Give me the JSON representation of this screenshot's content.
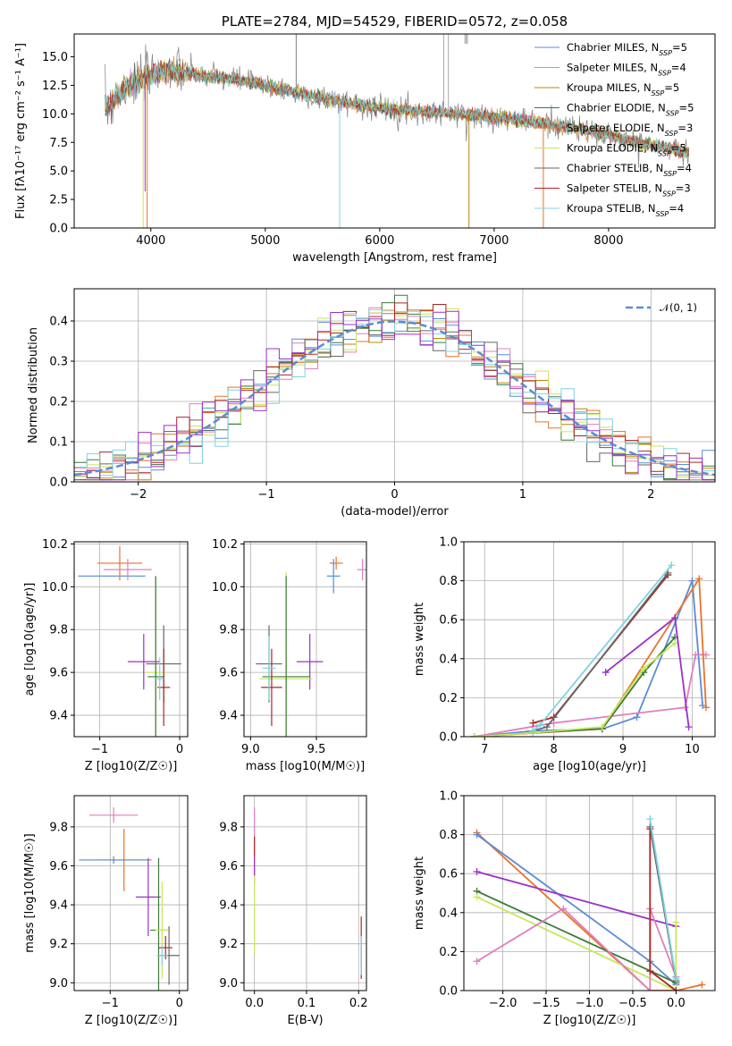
{
  "colors": {
    "Chabrier MILES": "#5b8bd6",
    "Salpeter MILES": "#e07fbf",
    "Kroupa MILES": "#b8860b",
    "Chabrier ELODIE": "#3a7a3a",
    "Salpeter ELODIE": "#e8732a",
    "Kroupa ELODIE": "#c6e85a",
    "Chabrier STELIB": "#666666",
    "Salpeter STELIB": "#b22222",
    "Kroupa STELIB": "#7fd3e0",
    "purple": "#9b30c8",
    "blue2": "#4f8ed6"
  },
  "chart_data": [
    {
      "id": "spectrum",
      "type": "line",
      "title": "PLATE=2784, MJD=54529, FIBERID=0572, z=0.058",
      "xlabel": "wavelength [Angstrom, rest frame]",
      "ylabel": "Flux [fλ10⁻¹⁷ erg cm⁻² s⁻¹ A⁻¹]",
      "xlim": [
        3330,
        8930
      ],
      "ylim": [
        0,
        17
      ],
      "xticks": [
        4000,
        5000,
        6000,
        7000,
        8000
      ],
      "yticks": [
        0.0,
        2.5,
        5.0,
        7.5,
        10.0,
        12.5,
        15.0
      ],
      "continuum": {
        "x": [
          3600,
          3700,
          3800,
          3950,
          4100,
          4300,
          4500,
          4800,
          5200,
          5600,
          6000,
          6400,
          6800,
          7200,
          7600,
          8000,
          8400,
          8700
        ],
        "y": [
          10.5,
          11.5,
          12.5,
          13.2,
          13.8,
          13.6,
          13.3,
          12.9,
          12.0,
          11.2,
          10.5,
          10.2,
          9.9,
          9.5,
          8.9,
          8.1,
          7.2,
          6.6
        ]
      },
      "legend": [
        "Chabrier MILES, N_SSP=5",
        "Salpeter MILES, N_SSP=4",
        "Kroupa MILES, N_SSP=5",
        "Chabrier ELODIE, N_SSP=5",
        "Salpeter ELODIE, N_SSP=3",
        "Kroupa ELODIE, N_SSP=5",
        "Chabrier STELIB, N_SSP=4",
        "Salpeter STELIB, N_SSP=3",
        "Kroupa STELIB, N_SSP=4"
      ],
      "legend_position": "top-right",
      "grid": false
    },
    {
      "id": "residuals",
      "type": "histogram",
      "xlabel": "(data-model)/error",
      "ylabel": "Normed distribution",
      "xlim": [
        -2.5,
        2.5
      ],
      "ylim": [
        0,
        0.48
      ],
      "xticks": [
        -2,
        -1,
        0,
        1,
        2
      ],
      "yticks": [
        0.0,
        0.1,
        0.2,
        0.3,
        0.4
      ],
      "legend": [
        "𝒩(0, 1)"
      ],
      "legend_position": "top-right",
      "reference_curve": "normal(0,1)",
      "grid": true
    },
    {
      "id": "age-vs-Z",
      "type": "errorbar",
      "xlabel": "Z [log10(Z/Z☉)]",
      "ylabel": "age  [log10(age/yr)]",
      "xlim": [
        -1.32,
        0.1
      ],
      "ylim": [
        9.3,
        10.21
      ],
      "xticks": [
        -1,
        0
      ],
      "yticks": [
        9.4,
        9.6,
        9.8,
        10.0,
        10.2
      ],
      "points": [
        {
          "color": "blue2",
          "x": -0.85,
          "xerr": 0.42,
          "y": 10.05,
          "yerr": 0.0
        },
        {
          "color": "Salpeter ELODIE",
          "x": -0.75,
          "xerr": 0.28,
          "y": 10.11,
          "yerr": 0.08
        },
        {
          "color": "Salpeter MILES",
          "x": -0.65,
          "xerr": 0.3,
          "y": 10.08,
          "yerr": 0.05
        },
        {
          "color": "purple",
          "x": -0.45,
          "xerr": 0.2,
          "y": 9.65,
          "yerr": 0.13
        },
        {
          "color": "Kroupa ELODIE",
          "x": -0.3,
          "xerr": 0.13,
          "y": 9.6,
          "yerr": 0.45
        },
        {
          "color": "Chabrier ELODIE",
          "x": -0.3,
          "xerr": 0.1,
          "y": 9.58,
          "yerr": 0.47
        },
        {
          "color": "Chabrier STELIB",
          "x": -0.2,
          "xerr": 0.22,
          "y": 9.64,
          "yerr": 0.18
        },
        {
          "color": "Salpeter STELIB",
          "x": -0.2,
          "xerr": 0.08,
          "y": 9.53,
          "yerr": 0.18
        },
        {
          "color": "Kroupa STELIB",
          "x": -0.25,
          "xerr": 0.05,
          "y": 9.57,
          "yerr": 0.1
        }
      ],
      "grid": true
    },
    {
      "id": "age-vs-mass",
      "type": "errorbar",
      "xlabel": "mass [log10(M/M☉)]",
      "ylabel": "",
      "xlim": [
        8.95,
        9.88
      ],
      "ylim": [
        9.3,
        10.21
      ],
      "xticks": [
        9.0,
        9.5
      ],
      "yticks": [
        9.4,
        9.6,
        9.8,
        10.0,
        10.2
      ],
      "points": [
        {
          "color": "Salpeter MILES",
          "x": 9.85,
          "xerr": 0.04,
          "y": 10.08,
          "yerr": 0.05
        },
        {
          "color": "Salpeter ELODIE",
          "x": 9.65,
          "xerr": 0.05,
          "y": 10.11,
          "yerr": 0.03
        },
        {
          "color": "blue2",
          "x": 9.63,
          "xerr": 0.05,
          "y": 10.05,
          "yerr": 0.08
        },
        {
          "color": "purple",
          "x": 9.45,
          "xerr": 0.1,
          "y": 9.65,
          "yerr": 0.13
        },
        {
          "color": "Kroupa ELODIE",
          "x": 9.27,
          "xerr": 0.2,
          "y": 9.57,
          "yerr": 0.5
        },
        {
          "color": "Chabrier ELODIE",
          "x": 9.27,
          "xerr": 0.18,
          "y": 9.58,
          "yerr": 0.47
        },
        {
          "color": "Chabrier STELIB",
          "x": 9.14,
          "xerr": 0.1,
          "y": 9.64,
          "yerr": 0.18
        },
        {
          "color": "Salpeter STELIB",
          "x": 9.16,
          "xerr": 0.08,
          "y": 9.53,
          "yerr": 0.18
        },
        {
          "color": "Kroupa STELIB",
          "x": 9.14,
          "xerr": 0.05,
          "y": 9.62,
          "yerr": 0.15
        }
      ],
      "grid": true
    },
    {
      "id": "mass-weight-vs-age",
      "type": "line",
      "xlabel": "age  [log10(age/yr)]",
      "ylabel": "mass weight",
      "xlim": [
        6.7,
        10.33
      ],
      "ylim": [
        0,
        1
      ],
      "xticks": [
        7,
        8,
        9,
        10
      ],
      "yticks": [
        0.0,
        0.2,
        0.4,
        0.6,
        0.8,
        1.0
      ],
      "series": [
        {
          "color": "Chabrier MILES",
          "x": [
            6.85,
            7.7,
            8.7,
            9.2,
            10.0,
            10.15
          ],
          "y": [
            0.0,
            0.03,
            0.04,
            0.1,
            0.8,
            0.16
          ]
        },
        {
          "color": "Salpeter MILES",
          "x": [
            6.85,
            8.0,
            9.9,
            10.05,
            10.2
          ],
          "y": [
            0.0,
            0.07,
            0.15,
            0.42,
            0.42
          ]
        },
        {
          "color": "Salpeter ELODIE",
          "x": [
            6.85,
            8.7,
            10.1,
            10.2
          ],
          "y": [
            0.0,
            0.04,
            0.81,
            0.15
          ]
        },
        {
          "color": "Chabrier ELODIE",
          "x": [
            6.85,
            7.7,
            8.7,
            9.3,
            9.75
          ],
          "y": [
            0.0,
            0.02,
            0.04,
            0.33,
            0.51
          ]
        },
        {
          "color": "Kroupa ELODIE",
          "x": [
            6.85,
            7.7,
            8.7,
            9.3,
            9.75
          ],
          "y": [
            0.0,
            0.02,
            0.05,
            0.35,
            0.48
          ]
        },
        {
          "color": "purple",
          "x": [
            8.75,
            9.75,
            9.95
          ],
          "y": [
            0.33,
            0.61,
            0.05
          ]
        },
        {
          "color": "Salpeter STELIB",
          "x": [
            7.7,
            8.0,
            9.65
          ],
          "y": [
            0.07,
            0.1,
            0.83
          ]
        },
        {
          "color": "Chabrier STELIB",
          "x": [
            7.7,
            7.9,
            9.65
          ],
          "y": [
            0.03,
            0.05,
            0.84
          ]
        },
        {
          "color": "Kroupa STELIB",
          "x": [
            7.7,
            7.8,
            9.7
          ],
          "y": [
            0.03,
            0.06,
            0.88
          ]
        }
      ],
      "grid": true
    },
    {
      "id": "mass-vs-Z",
      "type": "errorbar",
      "xlabel": "Z [log10(Z/Z☉)]",
      "ylabel": "mass [log10(M/M☉)]",
      "xlim": [
        -1.52,
        0.12
      ],
      "ylim": [
        8.96,
        9.96
      ],
      "xticks": [
        -1,
        0
      ],
      "yticks": [
        9.0,
        9.2,
        9.4,
        9.6,
        9.8
      ],
      "points": [
        {
          "color": "Salpeter MILES",
          "x": -0.95,
          "xerr": 0.35,
          "y": 9.86,
          "yerr": 0.04
        },
        {
          "color": "Salpeter ELODIE",
          "x": -0.8,
          "xerr": 0.4,
          "y": 9.63,
          "yerr": 0.16
        },
        {
          "color": "blue2",
          "x": -0.95,
          "xerr": 0.5,
          "y": 9.63,
          "yerr": 0.02
        },
        {
          "color": "purple",
          "x": -0.45,
          "xerr": 0.18,
          "y": 9.44,
          "yerr": 0.2
        },
        {
          "color": "Chabrier ELODIE",
          "x": -0.3,
          "xerr": 0.12,
          "y": 9.27,
          "yerr": 0.37
        },
        {
          "color": "Kroupa ELODIE",
          "x": -0.25,
          "xerr": 0.1,
          "y": 9.27,
          "yerr": 0.25
        },
        {
          "color": "Salpeter STELIB",
          "x": -0.2,
          "xerr": 0.1,
          "y": 9.18,
          "yerr": 0.06
        },
        {
          "color": "Chabrier STELIB",
          "x": -0.15,
          "xerr": 0.15,
          "y": 9.14,
          "yerr": 0.15
        },
        {
          "color": "Kroupa STELIB",
          "x": -0.25,
          "xerr": 0.08,
          "y": 9.14,
          "yerr": 0.05
        }
      ],
      "grid": true
    },
    {
      "id": "mass-vs-EBV",
      "type": "errorbar",
      "xlabel": "E(B-V)",
      "ylabel": "",
      "xlim": [
        -0.02,
        0.215
      ],
      "ylim": [
        8.96,
        9.96
      ],
      "xticks": [
        0.0,
        0.1,
        0.2
      ],
      "yticks": [
        9.0,
        9.2,
        9.4,
        9.6,
        9.8
      ],
      "points": [
        {
          "color": "Salpeter MILES",
          "x": 0.0,
          "xerr": 0.0,
          "y": 9.7,
          "yerr": 0.2
        },
        {
          "color": "Salpeter STELIB",
          "x": 0.0,
          "xerr": 0.0,
          "y": 9.65,
          "yerr": 0.1
        },
        {
          "color": "Kroupa ELODIE",
          "x": 0.0,
          "xerr": 0.0,
          "y": 9.4,
          "yerr": 0.25
        },
        {
          "color": "purple",
          "x": 0.0,
          "xerr": 0.0,
          "y": 9.6,
          "yerr": 0.05
        },
        {
          "color": "Salpeter STELIB",
          "x": 0.205,
          "xerr": 0.0,
          "y": 9.18,
          "yerr": 0.16
        },
        {
          "color": "Kroupa STELIB",
          "x": 0.205,
          "xerr": 0.0,
          "y": 9.14,
          "yerr": 0.1
        }
      ],
      "grid": true
    },
    {
      "id": "mass-weight-vs-Z",
      "type": "line",
      "xlabel": "Z [log10(Z/Z☉)]",
      "ylabel": "mass weight",
      "xlim": [
        -2.45,
        0.45
      ],
      "ylim": [
        0,
        1
      ],
      "xticks": [
        -2.0,
        -1.5,
        -1.0,
        -0.5,
        0.0
      ],
      "yticks": [
        0.0,
        0.2,
        0.4,
        0.6,
        0.8,
        1.0
      ],
      "series": [
        {
          "color": "Salpeter ELODIE",
          "x": [
            -2.3,
            -0.3,
            0.0,
            0.3
          ],
          "y": [
            0.81,
            0.0,
            0.0,
            0.03
          ]
        },
        {
          "color": "Chabrier MILES",
          "x": [
            -2.3,
            -0.3,
            0.0
          ],
          "y": [
            0.8,
            0.15,
            0.03
          ]
        },
        {
          "color": "purple",
          "x": [
            -2.3,
            0.0
          ],
          "y": [
            0.61,
            0.33
          ]
        },
        {
          "color": "Chabrier ELODIE",
          "x": [
            -2.3,
            0.0
          ],
          "y": [
            0.51,
            0.04
          ]
        },
        {
          "color": "Kroupa ELODIE",
          "x": [
            -2.3,
            0.0,
            0.0
          ],
          "y": [
            0.48,
            0.0,
            0.35
          ]
        },
        {
          "color": "Salpeter MILES",
          "x": [
            -2.3,
            -1.3,
            -0.3,
            -0.3,
            0.0
          ],
          "y": [
            0.15,
            0.42,
            0.0,
            0.42,
            0.07
          ]
        },
        {
          "color": "Salpeter STELIB",
          "x": [
            -0.3,
            -0.3,
            0.0
          ],
          "y": [
            0.83,
            0.1,
            0.0
          ]
        },
        {
          "color": "Chabrier STELIB",
          "x": [
            -0.3,
            0.0
          ],
          "y": [
            0.84,
            0.05
          ]
        },
        {
          "color": "Kroupa STELIB",
          "x": [
            -0.3,
            0.0
          ],
          "y": [
            0.88,
            0.06
          ]
        }
      ],
      "grid": true
    }
  ]
}
